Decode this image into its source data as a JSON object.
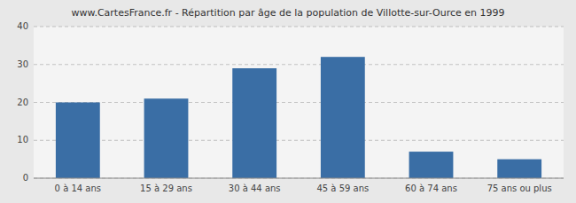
{
  "chart_data": {
    "type": "bar",
    "title": "www.CartesFrance.fr - Répartition par âge de la population de Villotte-sur-Ource en 1999",
    "categories": [
      "0 à 14 ans",
      "15 à 29 ans",
      "30 à 44 ans",
      "45 à 59 ans",
      "60 à 74 ans",
      "75 ans ou plus"
    ],
    "values": [
      20,
      21,
      29,
      32,
      7,
      5
    ],
    "color": "#3a6ea5",
    "ylim": [
      0,
      40
    ],
    "yticks": [
      0,
      10,
      20,
      30,
      40
    ],
    "grid": true
  }
}
